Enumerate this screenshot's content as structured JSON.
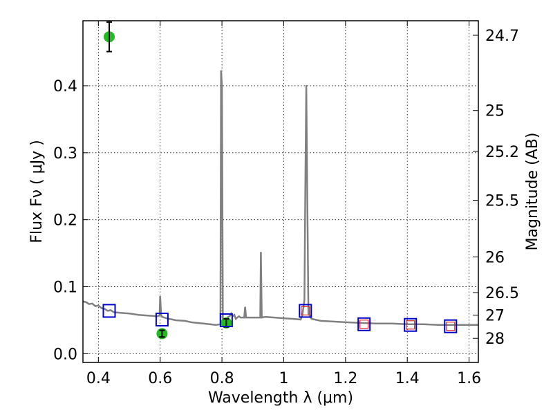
{
  "chart_data": {
    "type": "line",
    "xlabel": "Wavelength  λ (μm)",
    "ylabel": "Flux  Fν  ( μJy )",
    "y2label": "Magnitude (AB)",
    "xlim": [
      0.35,
      1.63
    ],
    "ylim": [
      -0.013,
      0.497
    ],
    "x_ticks": [
      0.4,
      0.6,
      0.8,
      1.0,
      1.2,
      1.4,
      1.6
    ],
    "x_tick_labels": [
      "0.4",
      "0.6",
      "0.8",
      "1",
      "1.2",
      "1.4",
      "1.6"
    ],
    "y_ticks": [
      0.0,
      0.1,
      0.2,
      0.3,
      0.4
    ],
    "y_tick_labels": [
      "0.0",
      "0.1",
      "0.2",
      "0.3",
      "0.4"
    ],
    "y2_ticks": [
      {
        "label": "24.7",
        "flux": 0.4753
      },
      {
        "label": "25",
        "flux": 0.3631
      },
      {
        "label": "25.2",
        "flux": 0.302
      },
      {
        "label": "25.5",
        "flux": 0.2291
      },
      {
        "label": "26",
        "flux": 0.1445
      },
      {
        "label": "26.5",
        "flux": 0.0912
      },
      {
        "label": "27",
        "flux": 0.0575
      },
      {
        "label": "28",
        "flux": 0.0229
      }
    ],
    "grid": true,
    "grid_style": "dotted",
    "series": [
      {
        "kind": "line",
        "color": "#808080",
        "points": [
          [
            0.35,
            0.078
          ],
          [
            0.36,
            0.077
          ],
          [
            0.37,
            0.074
          ],
          [
            0.38,
            0.075
          ],
          [
            0.39,
            0.071
          ],
          [
            0.4,
            0.072
          ],
          [
            0.41,
            0.068
          ],
          [
            0.42,
            0.067
          ],
          [
            0.43,
            0.064
          ],
          [
            0.44,
            0.065
          ],
          [
            0.45,
            0.062
          ],
          [
            0.47,
            0.061
          ],
          [
            0.5,
            0.06
          ],
          [
            0.53,
            0.058
          ],
          [
            0.56,
            0.057
          ],
          [
            0.59,
            0.056
          ],
          [
            0.598,
            0.057
          ],
          [
            0.6,
            0.086
          ],
          [
            0.603,
            0.058
          ],
          [
            0.606,
            0.055
          ],
          [
            0.62,
            0.053
          ],
          [
            0.65,
            0.05
          ],
          [
            0.68,
            0.049
          ],
          [
            0.7,
            0.047
          ],
          [
            0.72,
            0.046
          ],
          [
            0.74,
            0.045
          ],
          [
            0.76,
            0.044
          ],
          [
            0.78,
            0.043
          ],
          [
            0.795,
            0.044
          ],
          [
            0.797,
            0.423
          ],
          [
            0.8,
            0.4
          ],
          [
            0.803,
            0.046
          ],
          [
            0.81,
            0.048
          ],
          [
            0.82,
            0.055
          ],
          [
            0.825,
            0.056
          ],
          [
            0.83,
            0.06
          ],
          [
            0.835,
            0.056
          ],
          [
            0.84,
            0.058
          ],
          [
            0.845,
            0.052
          ],
          [
            0.85,
            0.054
          ],
          [
            0.855,
            0.056
          ],
          [
            0.86,
            0.054
          ],
          [
            0.872,
            0.054
          ],
          [
            0.875,
            0.07
          ],
          [
            0.878,
            0.054
          ],
          [
            0.89,
            0.054
          ],
          [
            0.92,
            0.054
          ],
          [
            0.924,
            0.054
          ],
          [
            0.926,
            0.152
          ],
          [
            0.929,
            0.054
          ],
          [
            0.94,
            0.055
          ],
          [
            0.97,
            0.054
          ],
          [
            1.0,
            0.053
          ],
          [
            1.03,
            0.052
          ],
          [
            1.055,
            0.051
          ],
          [
            1.06,
            0.057
          ],
          [
            1.067,
            0.08
          ],
          [
            1.07,
            0.26
          ],
          [
            1.073,
            0.401
          ],
          [
            1.076,
            0.25
          ],
          [
            1.08,
            0.06
          ],
          [
            1.09,
            0.052
          ],
          [
            1.12,
            0.049
          ],
          [
            1.16,
            0.048
          ],
          [
            1.2,
            0.047
          ],
          [
            1.25,
            0.046
          ],
          [
            1.3,
            0.045
          ],
          [
            1.35,
            0.045
          ],
          [
            1.4,
            0.044
          ],
          [
            1.45,
            0.044
          ],
          [
            1.5,
            0.043
          ],
          [
            1.55,
            0.043
          ],
          [
            1.6,
            0.043
          ],
          [
            1.63,
            0.043
          ]
        ]
      },
      {
        "kind": "points",
        "marker": "circle",
        "color": "#22bb22",
        "points": [
          {
            "x": 0.435,
            "y": 0.473,
            "err": 0.022
          },
          {
            "x": 0.606,
            "y": 0.03,
            "err": 0.005
          },
          {
            "x": 0.814,
            "y": 0.046,
            "err": 0.006
          }
        ]
      },
      {
        "kind": "points",
        "marker": "square-open",
        "color": "#0000cc",
        "points": [
          {
            "x": 0.435,
            "y": 0.064
          },
          {
            "x": 0.606,
            "y": 0.051
          },
          {
            "x": 0.814,
            "y": 0.05
          },
          {
            "x": 1.07,
            "y": 0.064
          },
          {
            "x": 1.26,
            "y": 0.044
          },
          {
            "x": 1.41,
            "y": 0.043
          },
          {
            "x": 1.54,
            "y": 0.041
          }
        ]
      },
      {
        "kind": "points",
        "marker": "square-open-small",
        "color": "#dd2222",
        "points": [
          {
            "x": 1.07,
            "y": 0.064
          },
          {
            "x": 1.26,
            "y": 0.044
          },
          {
            "x": 1.41,
            "y": 0.043
          },
          {
            "x": 1.54,
            "y": 0.041
          }
        ]
      }
    ]
  }
}
